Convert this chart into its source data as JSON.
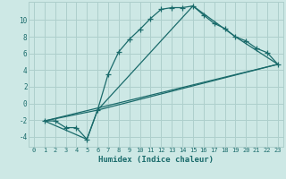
{
  "xlabel": "Humidex (Indice chaleur)",
  "background_color": "#cde8e5",
  "grid_color": "#aecfcc",
  "line_color": "#1a6b6b",
  "xlim": [
    -0.5,
    23.5
  ],
  "ylim": [
    -5.2,
    12.2
  ],
  "yticks": [
    -4,
    -2,
    0,
    2,
    4,
    6,
    8,
    10
  ],
  "xticks": [
    0,
    1,
    2,
    3,
    4,
    5,
    6,
    7,
    8,
    9,
    10,
    11,
    12,
    13,
    14,
    15,
    16,
    17,
    18,
    19,
    20,
    21,
    22,
    23
  ],
  "line1_x": [
    1,
    2,
    3,
    4,
    5,
    6,
    7,
    8,
    9,
    10,
    11,
    12,
    13,
    14,
    15,
    16,
    17,
    18,
    19,
    20,
    21,
    22,
    23
  ],
  "line1_y": [
    -2.1,
    -2.1,
    -2.9,
    -2.9,
    -4.3,
    -0.8,
    3.5,
    6.2,
    7.7,
    8.9,
    10.2,
    11.3,
    11.5,
    11.5,
    11.7,
    10.6,
    9.6,
    9.0,
    8.0,
    7.5,
    6.6,
    6.1,
    4.7
  ],
  "line2_x": [
    1,
    5,
    6,
    23
  ],
  "line2_y": [
    -2.1,
    -4.3,
    -0.8,
    4.7
  ],
  "line3_x": [
    1,
    23
  ],
  "line3_y": [
    -2.1,
    4.7
  ],
  "line4_x": [
    1,
    6,
    15,
    19,
    23
  ],
  "line4_y": [
    -2.1,
    -0.8,
    11.7,
    8.0,
    4.7
  ]
}
